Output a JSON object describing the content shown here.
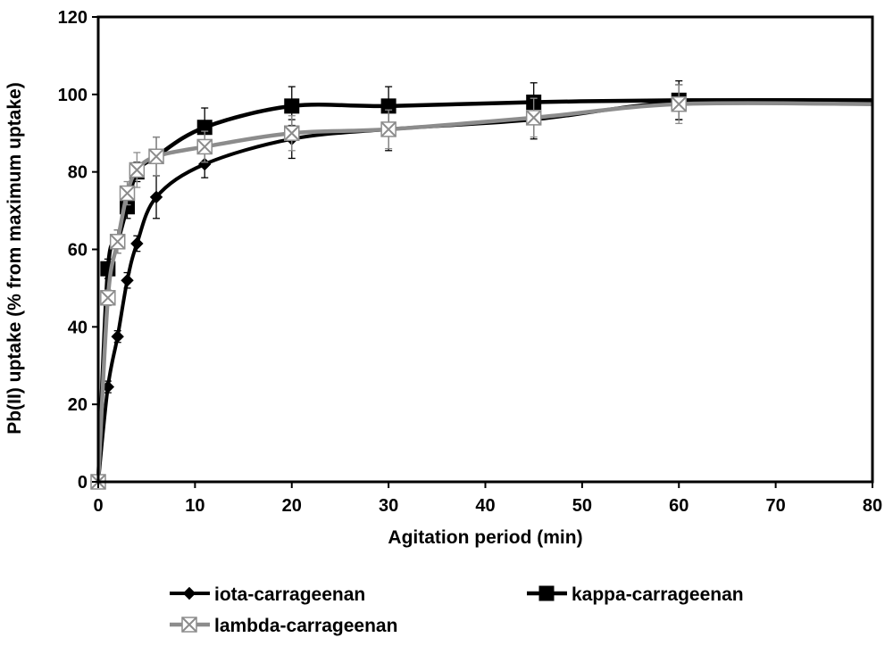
{
  "chart_data": {
    "type": "line",
    "title": "",
    "xlabel": "Agitation period (min)",
    "ylabel": "Pb(II) uptake (% from maximum uptake)",
    "xlim": [
      0,
      80
    ],
    "ylim": [
      0,
      120
    ],
    "xticks": [
      "0",
      "10",
      "20",
      "30",
      "40",
      "50",
      "60",
      "70",
      "80"
    ],
    "yticks": [
      "0",
      "20",
      "40",
      "60",
      "80",
      "100",
      "120"
    ],
    "grid": false,
    "legend_position": "bottom",
    "series": [
      {
        "name": "iota-carrageenan",
        "color": "#000000",
        "marker": "diamond",
        "x": [
          0,
          1,
          2,
          3,
          4,
          6,
          11,
          20,
          30,
          45,
          60
        ],
        "values": [
          0,
          24.5,
          37.5,
          52,
          61.5,
          73.5,
          82,
          88.5,
          91,
          93.5,
          98
        ],
        "errors": [
          0,
          1.5,
          1.5,
          2,
          2,
          5.5,
          3.5,
          5,
          5.5,
          5,
          4.5
        ]
      },
      {
        "name": "kappa-carrageenan",
        "color": "#000000",
        "marker": "square",
        "x": [
          0,
          1,
          2,
          3,
          4,
          6,
          11,
          20,
          30,
          45,
          60
        ],
        "values": [
          0,
          55,
          62,
          71,
          80,
          84,
          91.5,
          97,
          97,
          98,
          98.5
        ],
        "errors": [
          0,
          2.5,
          3,
          3,
          2.5,
          5,
          5,
          5,
          5,
          5,
          5
        ]
      },
      {
        "name": "lambda-carrageenan",
        "color": "#8c8c8c",
        "marker": "x-square",
        "x": [
          0,
          1,
          2,
          3,
          4,
          6,
          11,
          20,
          30,
          45,
          60
        ],
        "values": [
          0,
          47.5,
          62,
          74.5,
          80.5,
          84,
          86.5,
          90,
          91,
          94,
          97.5
        ],
        "errors": [
          0,
          2,
          3,
          3,
          4.5,
          5,
          4,
          4.5,
          5,
          5,
          5
        ]
      }
    ]
  }
}
